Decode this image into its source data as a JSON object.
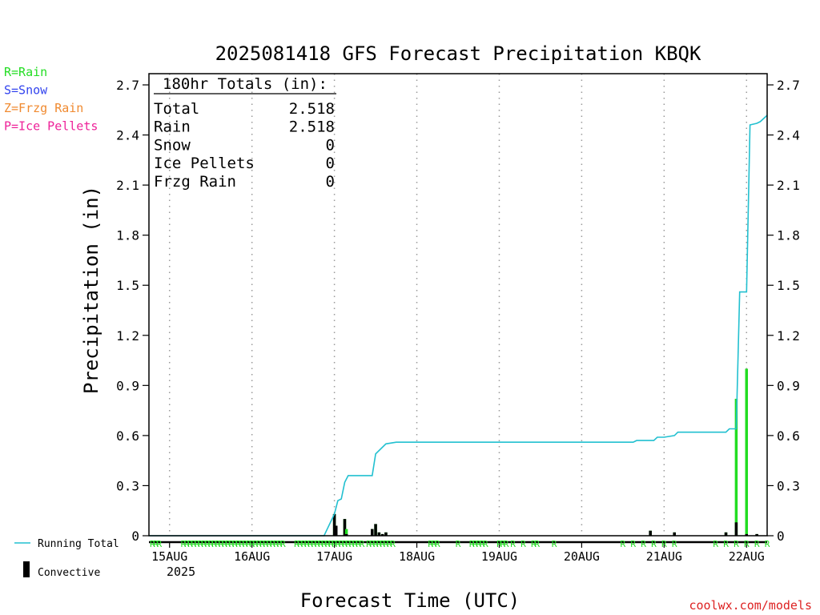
{
  "chart_data": {
    "type": "bar",
    "title": "2025081418 GFS Forecast Precipitation KBQK",
    "xlabel": "Forecast Time (UTC)",
    "ylabel": "Precipitation (in)",
    "ylim": [
      0,
      2.8
    ],
    "y_ticks": [
      "0",
      "0.3",
      "0.6",
      "0.9",
      "1.2",
      "1.5",
      "1.8",
      "2.1",
      "2.4",
      "2.7"
    ],
    "x_ticks": [
      "15AUG",
      "16AUG",
      "17AUG",
      "18AUG",
      "19AUG",
      "20AUG",
      "21AUG",
      "22AUG"
    ],
    "x_year": "2025",
    "x_range_hours": [
      0,
      180
    ],
    "grid": "vertical dotted at day boundaries",
    "legend_left": [
      {
        "label": "R=Rain",
        "color": "#22dd22"
      },
      {
        "label": "S=Snow",
        "color": "#3344ee"
      },
      {
        "label": "Z=Frzg Rain",
        "color": "#f08a30"
      },
      {
        "label": "P=Ice Pellets",
        "color": "#ee2299"
      }
    ],
    "legend_bottom": [
      {
        "label": "Running Total",
        "color": "#22c0d0",
        "kind": "line"
      },
      {
        "label": "Convective",
        "color": "#000000",
        "kind": "bar"
      }
    ],
    "totals": {
      "heading": "180hr Totals (in):",
      "rows": [
        {
          "label": "Total",
          "value": "2.518"
        },
        {
          "label": "Rain",
          "value": "2.518"
        },
        {
          "label": "Snow",
          "value": "0"
        },
        {
          "label": "Ice Pellets",
          "value": "0"
        },
        {
          "label": "Frzg Rain",
          "value": "0"
        }
      ]
    },
    "precip_bars": [
      {
        "hour": 54,
        "total": 0.13,
        "convective": 0.13
      },
      {
        "hour": 57,
        "total": 0.1,
        "convective": 0.1
      },
      {
        "hour": 66,
        "total": 0.07,
        "convective": 0.07
      },
      {
        "hour": 54.5,
        "total": 0.06,
        "convective": 0.06
      },
      {
        "hour": 57.5,
        "total": 0.04,
        "convective": 0.01
      },
      {
        "hour": 65,
        "total": 0.04,
        "convective": 0.04
      },
      {
        "hour": 67,
        "total": 0.02,
        "convective": 0.02
      },
      {
        "hour": 68,
        "total": 0.01,
        "convective": 0.01
      },
      {
        "hour": 69,
        "total": 0.02,
        "convective": 0.02
      },
      {
        "hour": 146,
        "total": 0.03,
        "convective": 0.03
      },
      {
        "hour": 153,
        "total": 0.02,
        "convective": 0.02
      },
      {
        "hour": 168,
        "total": 0.02,
        "convective": 0.02
      },
      {
        "hour": 171,
        "total": 0.82,
        "convective": 0.08
      },
      {
        "hour": 174,
        "total": 1.0,
        "convective": 0.01
      },
      {
        "hour": 177,
        "total": 0.01,
        "convective": 0.01
      }
    ],
    "running_total": {
      "x_hours": [
        0,
        51,
        54,
        55,
        56,
        57,
        58,
        65,
        66,
        69,
        72,
        120,
        141,
        142,
        147,
        148,
        150,
        153,
        154,
        168,
        169,
        171,
        172,
        174,
        175,
        177,
        178,
        180
      ],
      "y": [
        0,
        0,
        0.13,
        0.21,
        0.22,
        0.32,
        0.36,
        0.36,
        0.49,
        0.55,
        0.56,
        0.56,
        0.56,
        0.57,
        0.57,
        0.59,
        0.59,
        0.6,
        0.62,
        0.62,
        0.64,
        0.64,
        1.46,
        1.46,
        2.46,
        2.47,
        2.48,
        2.518
      ]
    },
    "ptype_markers": [
      {
        "hour": 1,
        "type": "R"
      },
      {
        "hour": 2,
        "type": "R"
      },
      {
        "hour": 3,
        "type": "R"
      },
      {
        "hour": 10,
        "type": "R"
      },
      {
        "hour": 11,
        "type": "R"
      },
      {
        "hour": 12,
        "type": "R"
      },
      {
        "hour": 13,
        "type": "R"
      },
      {
        "hour": 14,
        "type": "R"
      },
      {
        "hour": 15,
        "type": "R"
      },
      {
        "hour": 16,
        "type": "R"
      },
      {
        "hour": 17,
        "type": "R"
      },
      {
        "hour": 18,
        "type": "R"
      },
      {
        "hour": 19,
        "type": "R"
      },
      {
        "hour": 20,
        "type": "R"
      },
      {
        "hour": 21,
        "type": "R"
      },
      {
        "hour": 22,
        "type": "R"
      },
      {
        "hour": 23,
        "type": "R"
      },
      {
        "hour": 24,
        "type": "R"
      },
      {
        "hour": 25,
        "type": "R"
      },
      {
        "hour": 26,
        "type": "R"
      },
      {
        "hour": 27,
        "type": "R"
      },
      {
        "hour": 28,
        "type": "R"
      },
      {
        "hour": 29,
        "type": "R"
      },
      {
        "hour": 30,
        "type": "R"
      },
      {
        "hour": 31,
        "type": "R"
      },
      {
        "hour": 32,
        "type": "R"
      },
      {
        "hour": 33,
        "type": "R"
      },
      {
        "hour": 34,
        "type": "R"
      },
      {
        "hour": 35,
        "type": "R"
      },
      {
        "hour": 36,
        "type": "R"
      },
      {
        "hour": 37,
        "type": "R"
      },
      {
        "hour": 38,
        "type": "R"
      },
      {
        "hour": 39,
        "type": "R"
      },
      {
        "hour": 43,
        "type": "R"
      },
      {
        "hour": 44,
        "type": "R"
      },
      {
        "hour": 45,
        "type": "R"
      },
      {
        "hour": 46,
        "type": "R"
      },
      {
        "hour": 47,
        "type": "R"
      },
      {
        "hour": 48,
        "type": "R"
      },
      {
        "hour": 49,
        "type": "R"
      },
      {
        "hour": 50,
        "type": "R"
      },
      {
        "hour": 51,
        "type": "R"
      },
      {
        "hour": 52,
        "type": "R"
      },
      {
        "hour": 53,
        "type": "R"
      },
      {
        "hour": 54,
        "type": "R"
      },
      {
        "hour": 55,
        "type": "R"
      },
      {
        "hour": 56,
        "type": "R"
      },
      {
        "hour": 57,
        "type": "R"
      },
      {
        "hour": 58,
        "type": "R"
      },
      {
        "hour": 59,
        "type": "R"
      },
      {
        "hour": 60,
        "type": "R"
      },
      {
        "hour": 61,
        "type": "R"
      },
      {
        "hour": 62,
        "type": "R"
      },
      {
        "hour": 64,
        "type": "R"
      },
      {
        "hour": 65,
        "type": "R"
      },
      {
        "hour": 66,
        "type": "R"
      },
      {
        "hour": 67,
        "type": "R"
      },
      {
        "hour": 68,
        "type": "R"
      },
      {
        "hour": 69,
        "type": "R"
      },
      {
        "hour": 70,
        "type": "R"
      },
      {
        "hour": 71,
        "type": "R"
      },
      {
        "hour": 82,
        "type": "R"
      },
      {
        "hour": 83,
        "type": "R"
      },
      {
        "hour": 84,
        "type": "R"
      },
      {
        "hour": 90,
        "type": "R"
      },
      {
        "hour": 94,
        "type": "R"
      },
      {
        "hour": 95,
        "type": "R"
      },
      {
        "hour": 96,
        "type": "R"
      },
      {
        "hour": 97,
        "type": "R"
      },
      {
        "hour": 98,
        "type": "R"
      },
      {
        "hour": 102,
        "type": "R"
      },
      {
        "hour": 103,
        "type": "R"
      },
      {
        "hour": 104,
        "type": "R"
      },
      {
        "hour": 106,
        "type": "R"
      },
      {
        "hour": 109,
        "type": "R"
      },
      {
        "hour": 112,
        "type": "R"
      },
      {
        "hour": 113,
        "type": "R"
      },
      {
        "hour": 118,
        "type": "R"
      },
      {
        "hour": 138,
        "type": "R"
      },
      {
        "hour": 141,
        "type": "R"
      },
      {
        "hour": 144,
        "type": "R"
      },
      {
        "hour": 147,
        "type": "R"
      },
      {
        "hour": 150,
        "type": "R"
      },
      {
        "hour": 153,
        "type": "R"
      },
      {
        "hour": 165,
        "type": "R"
      },
      {
        "hour": 168,
        "type": "R"
      },
      {
        "hour": 171,
        "type": "R"
      },
      {
        "hour": 174,
        "type": "R"
      },
      {
        "hour": 177,
        "type": "R"
      },
      {
        "hour": 180,
        "type": "R"
      }
    ],
    "colors": {
      "rain": "#22dd22",
      "convective": "#000000",
      "running_total": "#22c0d0",
      "axis": "#000000",
      "grid": "#999999"
    }
  },
  "credit": "coolwx.com/models",
  "credit_color": "#dd2222"
}
